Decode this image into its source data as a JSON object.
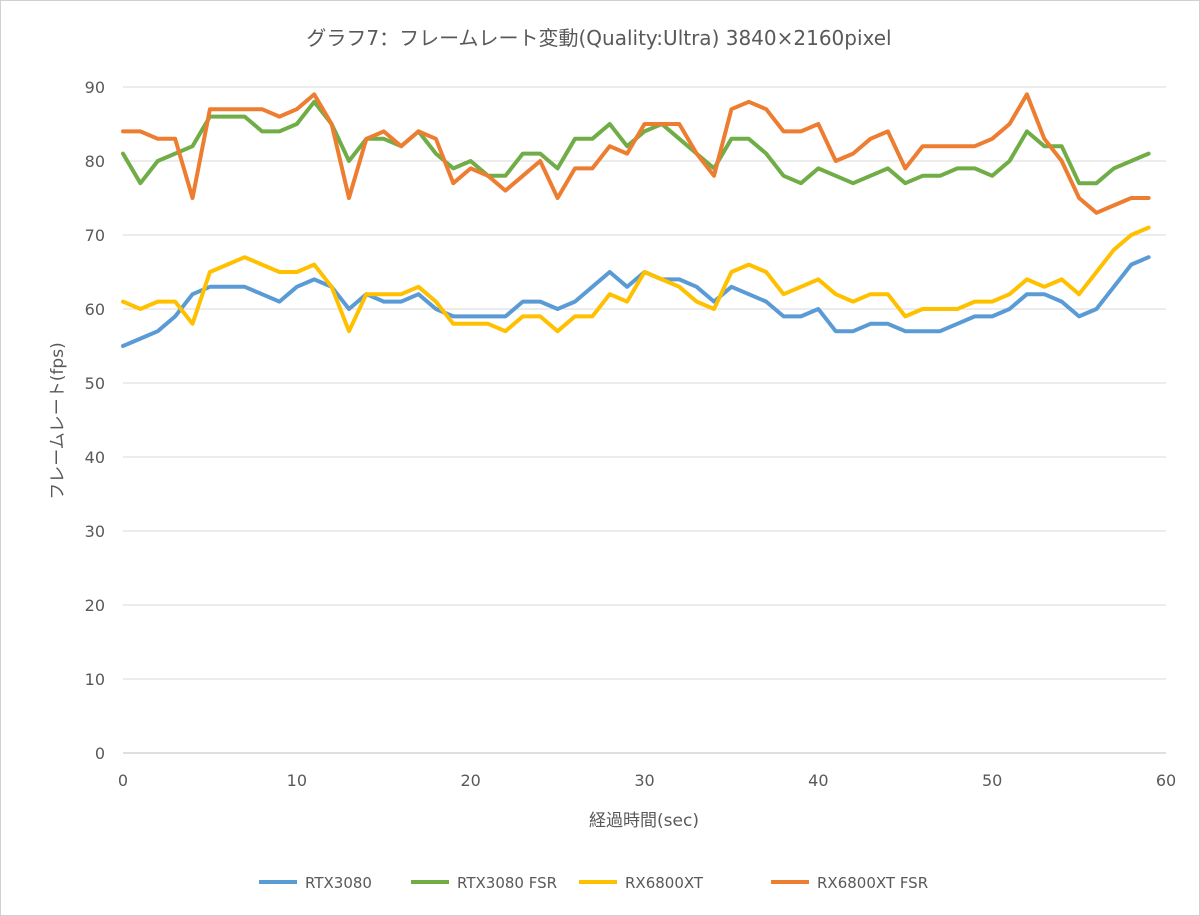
{
  "chart_data": {
    "type": "line",
    "title": "グラフ7：フレームレート変動(Quality:Ultra) 3840×2160pixel",
    "xlabel": "経過時間(sec)",
    "ylabel": "フレームレート(fps)",
    "xlim": [
      0,
      60
    ],
    "ylim": [
      0,
      90
    ],
    "x_ticks": [
      0,
      10,
      20,
      30,
      40,
      50,
      60
    ],
    "y_ticks": [
      0,
      10,
      20,
      30,
      40,
      50,
      60,
      70,
      80,
      90
    ],
    "grid": true,
    "legend_position": "bottom",
    "x": [
      0,
      1,
      2,
      3,
      4,
      5,
      6,
      7,
      8,
      9,
      10,
      11,
      12,
      13,
      14,
      15,
      16,
      17,
      18,
      19,
      20,
      21,
      22,
      23,
      24,
      25,
      26,
      27,
      28,
      29,
      30,
      31,
      32,
      33,
      34,
      35,
      36,
      37,
      38,
      39,
      40,
      41,
      42,
      43,
      44,
      45,
      46,
      47,
      48,
      49,
      50,
      51,
      52,
      53,
      54,
      55,
      56,
      57,
      58,
      59
    ],
    "series": [
      {
        "name": "RTX3080",
        "color": "#5B9BD5",
        "values": [
          55,
          56,
          57,
          59,
          62,
          63,
          63,
          63,
          62,
          61,
          63,
          64,
          63,
          60,
          62,
          61,
          61,
          62,
          60,
          59,
          59,
          59,
          59,
          61,
          61,
          60,
          61,
          63,
          65,
          63,
          65,
          64,
          64,
          63,
          61,
          63,
          62,
          61,
          59,
          59,
          60,
          57,
          57,
          58,
          58,
          57,
          57,
          57,
          58,
          59,
          59,
          60,
          62,
          62,
          61,
          59,
          60,
          63,
          66,
          67
        ]
      },
      {
        "name": "RTX3080 FSR",
        "color": "#70AD47",
        "values": [
          81,
          77,
          80,
          81,
          82,
          86,
          86,
          86,
          84,
          84,
          85,
          88,
          85,
          80,
          83,
          83,
          82,
          84,
          81,
          79,
          80,
          78,
          78,
          81,
          81,
          79,
          83,
          83,
          85,
          82,
          84,
          85,
          83,
          81,
          79,
          83,
          83,
          81,
          78,
          77,
          79,
          78,
          77,
          78,
          79,
          77,
          78,
          78,
          79,
          79,
          78,
          80,
          84,
          82,
          82,
          77,
          77,
          79,
          80,
          81
        ]
      },
      {
        "name": "RX6800XT",
        "color": "#FFC000",
        "values": [
          61,
          60,
          61,
          61,
          58,
          65,
          66,
          67,
          66,
          65,
          65,
          66,
          63,
          57,
          62,
          62,
          62,
          63,
          61,
          58,
          58,
          58,
          57,
          59,
          59,
          57,
          59,
          59,
          62,
          61,
          65,
          64,
          63,
          61,
          60,
          65,
          66,
          65,
          62,
          63,
          64,
          62,
          61,
          62,
          62,
          59,
          60,
          60,
          60,
          61,
          61,
          62,
          64,
          63,
          64,
          62,
          65,
          68,
          70,
          71
        ]
      },
      {
        "name": "RX6800XT FSR",
        "color": "#ED7D31",
        "values": [
          84,
          84,
          83,
          83,
          75,
          87,
          87,
          87,
          87,
          86,
          87,
          89,
          85,
          75,
          83,
          84,
          82,
          84,
          83,
          77,
          79,
          78,
          76,
          78,
          80,
          75,
          79,
          79,
          82,
          81,
          85,
          85,
          85,
          81,
          78,
          87,
          88,
          87,
          84,
          84,
          85,
          80,
          81,
          83,
          84,
          79,
          82,
          82,
          82,
          82,
          83,
          85,
          89,
          83,
          80,
          75,
          73,
          74,
          75,
          75
        ]
      }
    ]
  }
}
